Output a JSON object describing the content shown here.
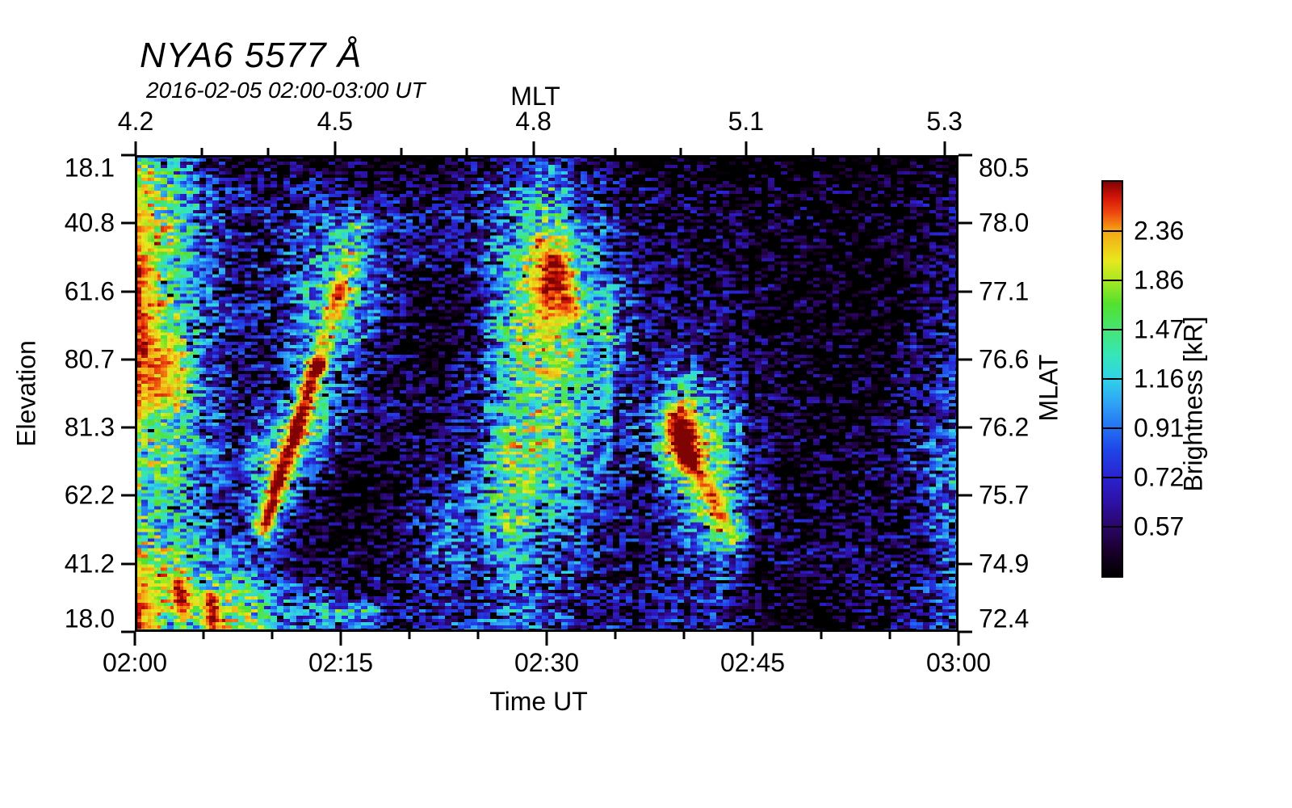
{
  "title": "NYA6 5577 Å",
  "subtitle": "2016-02-05 02:00-03:00 UT",
  "axes": {
    "top": {
      "label": "MLT",
      "major_ticks": [
        {
          "label": "4.2",
          "pos": 0.001
        },
        {
          "label": "4.5",
          "pos": 0.243
        },
        {
          "label": "4.8",
          "pos": 0.484
        },
        {
          "label": "5.1",
          "pos": 0.742
        },
        {
          "label": "5.3",
          "pos": 0.983
        }
      ],
      "minor_ticks": [
        0.081,
        0.162,
        0.324,
        0.403,
        0.583,
        0.663,
        0.824,
        0.903
      ]
    },
    "bottom": {
      "label": "Time UT",
      "major_ticks": [
        {
          "label": "02:00",
          "pos": 0.0
        },
        {
          "label": "02:15",
          "pos": 0.25
        },
        {
          "label": "02:30",
          "pos": 0.5
        },
        {
          "label": "02:45",
          "pos": 0.75
        },
        {
          "label": "03:00",
          "pos": 1.0
        }
      ],
      "minor_ticks": [
        0.0833,
        0.1667,
        0.3333,
        0.4167,
        0.5833,
        0.6667,
        0.8333,
        0.9167
      ]
    },
    "left": {
      "label": "Elevation",
      "major_ticks": [
        {
          "label": "18.1",
          "pos": 0.0
        },
        {
          "label": "40.8",
          "pos": 0.1429
        },
        {
          "label": "61.6",
          "pos": 0.2857
        },
        {
          "label": "80.7",
          "pos": 0.4286
        },
        {
          "label": "81.3",
          "pos": 0.5714
        },
        {
          "label": "62.2",
          "pos": 0.7143
        },
        {
          "label": "41.2",
          "pos": 0.8571
        },
        {
          "label": "18.0",
          "pos": 1.0
        }
      ]
    },
    "right": {
      "label": "MLAT",
      "major_ticks": [
        {
          "label": "80.5",
          "pos": 0.0
        },
        {
          "label": "78.0",
          "pos": 0.1429
        },
        {
          "label": "77.1",
          "pos": 0.2857
        },
        {
          "label": "76.6",
          "pos": 0.4286
        },
        {
          "label": "76.2",
          "pos": 0.5714
        },
        {
          "label": "75.7",
          "pos": 0.7143
        },
        {
          "label": "74.9",
          "pos": 0.8571
        },
        {
          "label": "72.4",
          "pos": 1.0
        }
      ]
    }
  },
  "colorbar": {
    "label": "Brightness [kR]",
    "tick_labels": [
      "2.36",
      "1.86",
      "1.47",
      "1.16",
      "0.91",
      "0.72",
      "0.57"
    ]
  },
  "chart_data": {
    "type": "heatmap",
    "title": "NYA6 5577 Å",
    "subtitle": "2016-02-05 02:00-03:00 UT",
    "x_axis": {
      "label": "Time UT",
      "start": "02:00",
      "end": "03:00",
      "tick_labels": [
        "02:00",
        "02:15",
        "02:30",
        "02:45",
        "03:00"
      ]
    },
    "top_axis": {
      "label": "MLT",
      "tick_labels": [
        4.2,
        4.5,
        4.8,
        5.1,
        5.3
      ]
    },
    "left_axis": {
      "label": "Elevation",
      "tick_labels": [
        18.1,
        40.8,
        61.6,
        80.7,
        81.3,
        62.2,
        41.2,
        18.0
      ]
    },
    "right_axis": {
      "label": "MLAT",
      "tick_labels": [
        80.5,
        78.0,
        77.1,
        76.6,
        76.2,
        75.7,
        74.9,
        72.4
      ]
    },
    "color_scale": {
      "label": "Brightness [kR]",
      "scale": "log",
      "min": 0.45,
      "max": 3.0,
      "tick_values": [
        2.36,
        1.86,
        1.47,
        1.16,
        0.91,
        0.72,
        0.57
      ]
    },
    "colormap_stops": [
      [
        0.0,
        "#000000"
      ],
      [
        0.07,
        "#1c0030"
      ],
      [
        0.125,
        "#2b0668"
      ],
      [
        0.19,
        "#2d11a8"
      ],
      [
        0.25,
        "#2a22cf"
      ],
      [
        0.32,
        "#1f45e8"
      ],
      [
        0.375,
        "#2470f2"
      ],
      [
        0.44,
        "#2fa4f5"
      ],
      [
        0.5,
        "#30d2e8"
      ],
      [
        0.56,
        "#35e6b8"
      ],
      [
        0.625,
        "#45e575"
      ],
      [
        0.69,
        "#52e12e"
      ],
      [
        0.75,
        "#a8e822"
      ],
      [
        0.8,
        "#e8e81e"
      ],
      [
        0.875,
        "#f5a614"
      ],
      [
        0.92,
        "#ef4a0e"
      ],
      [
        0.96,
        "#d41408"
      ],
      [
        1.0,
        "#800303"
      ]
    ],
    "brightness_grid_kR": {
      "cols": 25,
      "rows": 15,
      "description": "Estimated auroral brightness (kR) on a coarse 25x15 grid; columns span 02:00-03:00 UT left-to-right, rows span the elevation scan top-to-bottom (18.1N -> 18.0S).",
      "values": [
        [
          1.5,
          1.1,
          0.55,
          0.48,
          0.45,
          0.45,
          0.45,
          0.42,
          0.42,
          0.45,
          0.5,
          0.6,
          0.75,
          0.55,
          0.45,
          0.42,
          0.4,
          0.4,
          0.4,
          0.38,
          0.38,
          0.38,
          0.38,
          0.38,
          0.4
        ],
        [
          2.0,
          1.5,
          0.8,
          0.6,
          0.58,
          0.6,
          0.55,
          0.5,
          0.5,
          0.55,
          0.6,
          0.9,
          1.2,
          0.8,
          0.55,
          0.5,
          0.48,
          0.45,
          0.45,
          0.45,
          0.45,
          0.45,
          0.45,
          0.45,
          0.5
        ],
        [
          2.3,
          1.6,
          0.85,
          0.62,
          0.62,
          0.8,
          0.95,
          0.7,
          0.6,
          0.6,
          0.65,
          1.0,
          1.5,
          0.9,
          0.65,
          0.55,
          0.5,
          0.48,
          0.45,
          0.45,
          0.45,
          0.42,
          0.45,
          0.48,
          0.55
        ],
        [
          2.7,
          1.4,
          0.9,
          0.62,
          0.6,
          0.9,
          1.2,
          0.8,
          0.6,
          0.55,
          0.7,
          1.2,
          2.4,
          1.1,
          0.7,
          0.55,
          0.5,
          0.48,
          0.45,
          0.45,
          0.42,
          0.42,
          0.42,
          0.5,
          0.6
        ],
        [
          2.9,
          1.4,
          0.85,
          0.6,
          0.65,
          1.0,
          1.5,
          0.8,
          0.5,
          0.45,
          0.5,
          1.3,
          2.6,
          1.2,
          0.85,
          0.55,
          0.5,
          0.52,
          0.48,
          0.45,
          0.42,
          0.4,
          0.42,
          0.5,
          0.6
        ],
        [
          2.9,
          1.5,
          0.8,
          0.6,
          0.6,
          0.9,
          1.3,
          0.7,
          0.48,
          0.45,
          0.55,
          1.4,
          2.2,
          1.3,
          0.9,
          0.6,
          0.65,
          0.55,
          0.48,
          0.42,
          0.4,
          0.4,
          0.42,
          0.55,
          0.65
        ],
        [
          2.8,
          2.4,
          0.8,
          0.58,
          0.58,
          1.0,
          0.9,
          0.6,
          0.48,
          0.45,
          0.6,
          1.5,
          1.8,
          1.4,
          0.9,
          0.6,
          0.7,
          0.55,
          0.5,
          0.45,
          0.42,
          0.42,
          0.45,
          0.6,
          0.7
        ],
        [
          2.6,
          2.2,
          0.85,
          0.6,
          0.55,
          1.1,
          0.8,
          0.55,
          0.5,
          0.5,
          0.7,
          1.3,
          1.5,
          1.2,
          0.8,
          0.6,
          1.3,
          0.9,
          0.5,
          0.45,
          0.45,
          0.45,
          0.5,
          0.6,
          0.75
        ],
        [
          1.9,
          1.3,
          0.9,
          0.6,
          1.0,
          1.6,
          0.7,
          0.55,
          0.5,
          0.5,
          0.65,
          1.4,
          1.8,
          1.1,
          0.7,
          0.8,
          2.6,
          1.3,
          0.55,
          0.5,
          0.45,
          0.45,
          0.5,
          0.65,
          0.85
        ],
        [
          1.6,
          1.4,
          0.9,
          0.62,
          1.6,
          1.0,
          0.45,
          0.42,
          0.5,
          0.55,
          0.7,
          1.9,
          1.5,
          1.0,
          0.65,
          0.7,
          2.1,
          1.5,
          0.6,
          0.42,
          0.45,
          0.45,
          0.5,
          0.7,
          1.0
        ],
        [
          1.5,
          1.3,
          0.85,
          0.6,
          1.2,
          0.6,
          0.42,
          0.42,
          0.55,
          0.8,
          1.0,
          1.6,
          1.2,
          0.9,
          0.6,
          0.6,
          1.2,
          1.6,
          0.7,
          0.45,
          0.5,
          0.5,
          0.55,
          0.7,
          1.0
        ],
        [
          1.5,
          1.2,
          0.95,
          0.62,
          0.8,
          0.5,
          0.4,
          0.4,
          0.6,
          1.0,
          0.9,
          1.4,
          0.9,
          0.8,
          0.6,
          0.55,
          0.8,
          1.5,
          0.6,
          0.5,
          0.5,
          0.5,
          0.55,
          0.65,
          0.95
        ],
        [
          2.0,
          1.8,
          1.0,
          0.9,
          0.7,
          0.45,
          0.45,
          0.5,
          0.6,
          0.8,
          0.7,
          1.0,
          0.8,
          0.7,
          0.6,
          0.55,
          0.7,
          0.8,
          0.55,
          0.5,
          0.5,
          0.5,
          0.55,
          0.6,
          0.85
        ],
        [
          2.8,
          1.6,
          2.0,
          1.6,
          1.0,
          0.8,
          0.6,
          0.6,
          0.6,
          0.65,
          0.65,
          0.9,
          0.75,
          0.6,
          0.6,
          0.6,
          0.65,
          0.7,
          0.5,
          0.42,
          0.42,
          0.5,
          0.55,
          0.6,
          0.8
        ],
        [
          3.0,
          1.2,
          1.4,
          1.8,
          1.3,
          0.9,
          0.65,
          0.6,
          0.6,
          0.65,
          0.8,
          1.0,
          0.8,
          0.65,
          0.6,
          0.6,
          0.6,
          0.65,
          0.5,
          0.4,
          0.4,
          0.5,
          0.55,
          0.6,
          0.75
        ]
      ]
    },
    "bright_streaks": [
      {
        "x1": 0.157,
        "y1": 0.78,
        "x2": 0.222,
        "y2": 0.44,
        "w": 0.011,
        "amp": 2.0
      },
      {
        "x1": 0.222,
        "y1": 0.44,
        "x2": 0.247,
        "y2": 0.29,
        "w": 0.012,
        "amp": 0.85
      },
      {
        "x1": 0.247,
        "y1": 0.29,
        "x2": 0.275,
        "y2": 0.155,
        "w": 0.013,
        "amp": 0.5
      },
      {
        "x1": 0.662,
        "y1": 0.6,
        "x2": 0.728,
        "y2": 0.8,
        "w": 0.012,
        "amp": 1.0
      },
      {
        "x1": 0.658,
        "y1": 0.55,
        "x2": 0.672,
        "y2": 0.635,
        "w": 0.016,
        "amp": 1.1
      },
      {
        "x1": 0.512,
        "y1": 0.24,
        "x2": 0.53,
        "y2": 0.33,
        "w": 0.016,
        "amp": 1.0
      },
      {
        "x1": 0.053,
        "y1": 0.9,
        "x2": 0.058,
        "y2": 0.955,
        "w": 0.01,
        "amp": 1.3
      },
      {
        "x1": 0.094,
        "y1": 0.935,
        "x2": 0.094,
        "y2": 1.0,
        "w": 0.009,
        "amp": 1.4
      },
      {
        "x1": 0.228,
        "y1": 0.96,
        "x2": 0.288,
        "y2": 0.965,
        "w": 0.013,
        "amp": 0.6
      },
      {
        "x1": 0.573,
        "y1": 0.3,
        "x2": 0.573,
        "y2": 0.62,
        "w": 0.008,
        "amp": 0.35
      }
    ]
  }
}
